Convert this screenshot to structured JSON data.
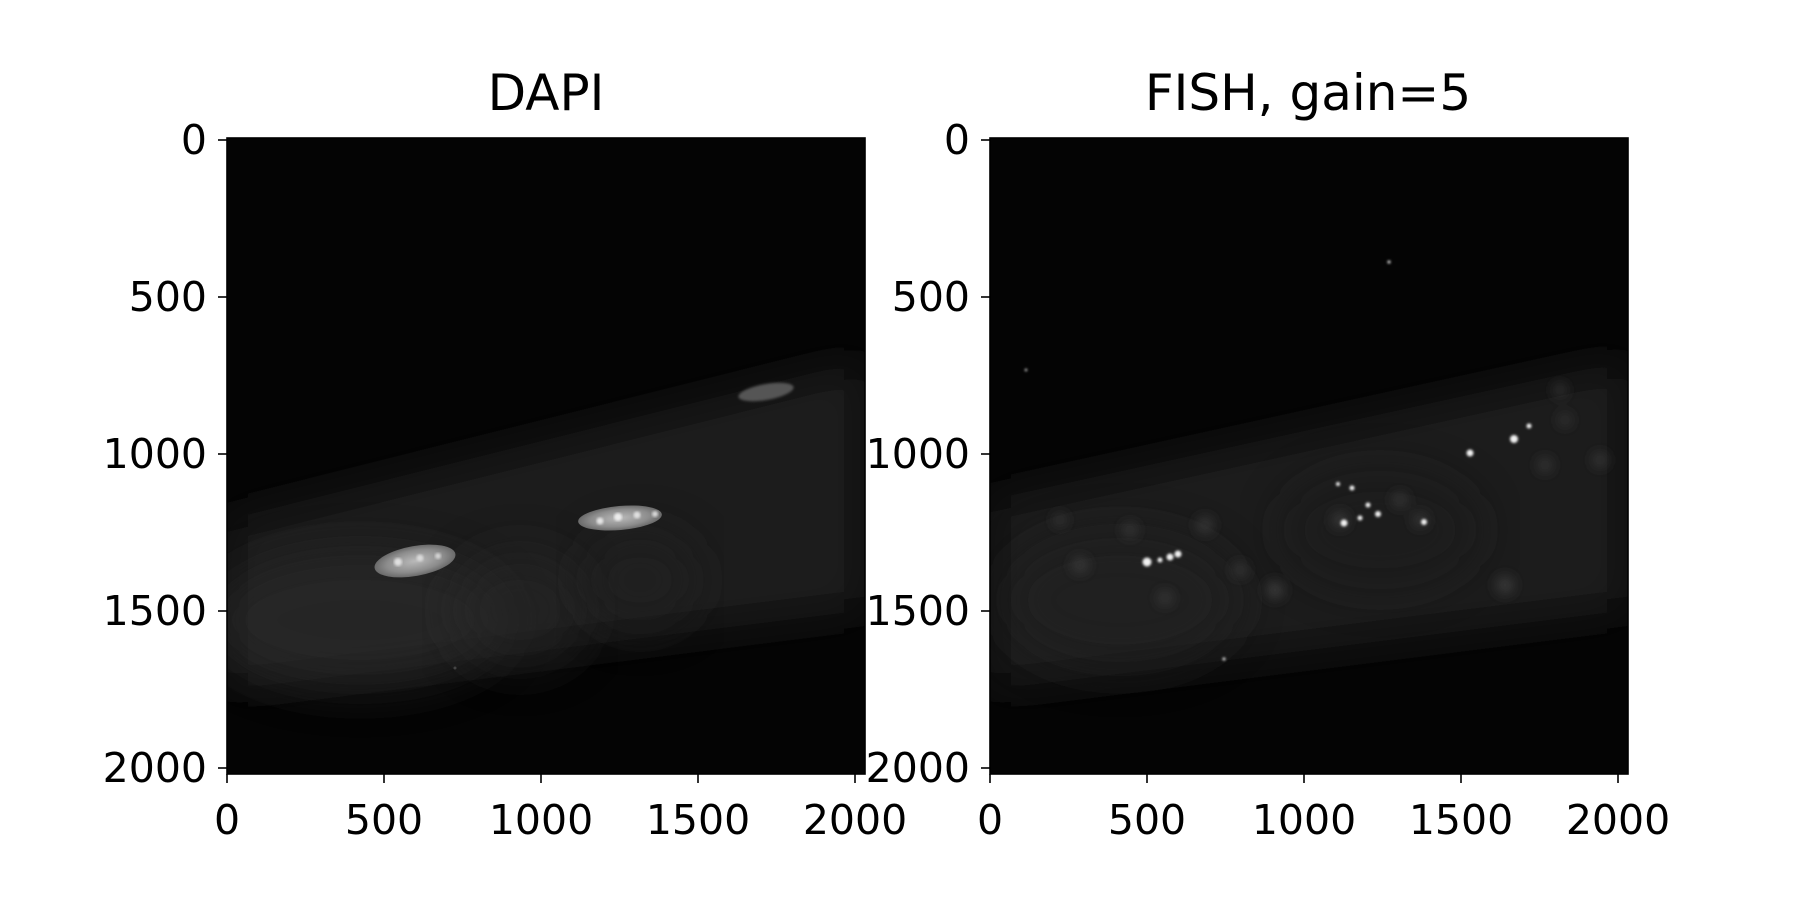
{
  "panels": [
    {
      "title": "DAPI",
      "x_ticks": [
        "0",
        "500",
        "1000",
        "1500",
        "2000"
      ],
      "y_ticks": [
        "0",
        "500",
        "1000",
        "1500",
        "2000"
      ],
      "content": "grayscale fluorescence micrograph, nuclei"
    },
    {
      "title": "FISH, gain=5",
      "x_ticks": [
        "0",
        "500",
        "1000",
        "1500",
        "2000"
      ],
      "y_ticks": [
        "0",
        "500",
        "1000",
        "1500",
        "2000"
      ],
      "content": "grayscale fluorescence micrograph, bright puncta"
    }
  ],
  "colors": {
    "background": "#ffffff",
    "image_dark": "#040404",
    "axis": "#000000"
  }
}
